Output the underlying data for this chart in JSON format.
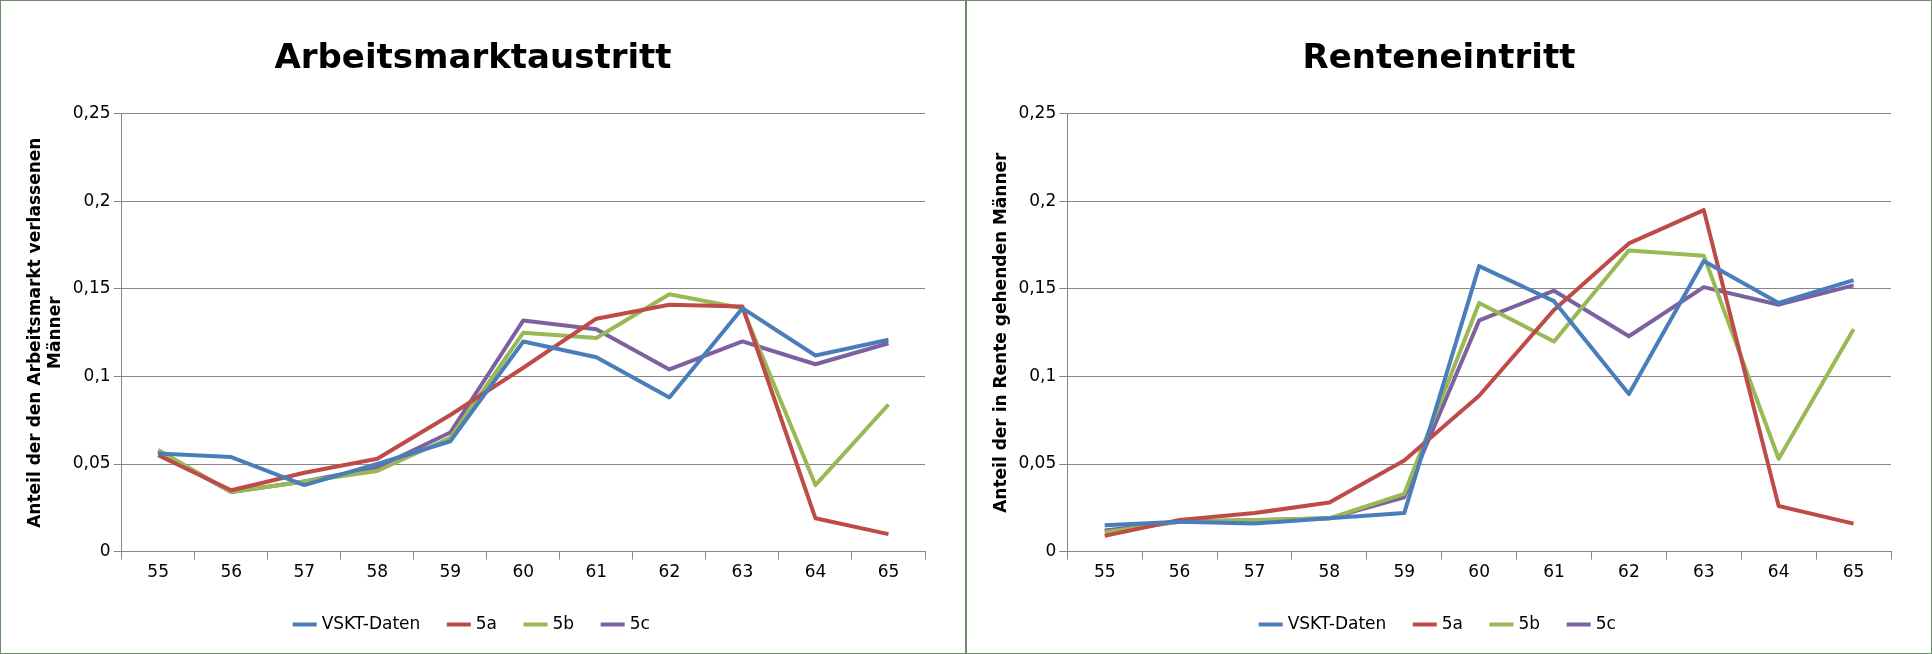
{
  "chart_data": [
    {
      "type": "line",
      "title": "Arbeitsmarktaustritt",
      "ylabel": "Anteil der den Arbeitsmarkt verlassenen Männer",
      "categories": [
        "55",
        "56",
        "57",
        "58",
        "59",
        "60",
        "61",
        "62",
        "63",
        "64",
        "65"
      ],
      "series": [
        {
          "name": "VSKT-Daten",
          "color": "#4a7ebb",
          "values": [
            0.056,
            0.054,
            0.038,
            0.05,
            0.063,
            0.12,
            0.111,
            0.088,
            0.139,
            0.112,
            0.121
          ]
        },
        {
          "name": "5a",
          "color": "#be4b48",
          "values": [
            0.055,
            0.035,
            0.045,
            0.053,
            0.078,
            0.105,
            0.133,
            0.141,
            0.14,
            0.019,
            0.01
          ]
        },
        {
          "name": "5b",
          "color": "#98b954",
          "values": [
            0.058,
            0.034,
            0.04,
            0.046,
            0.065,
            0.125,
            0.122,
            0.147,
            0.139,
            0.038,
            0.084
          ]
        },
        {
          "name": "5c",
          "color": "#7d60a0",
          "values": [
            0.057,
            0.034,
            0.04,
            0.048,
            0.068,
            0.132,
            0.127,
            0.104,
            0.12,
            0.107,
            0.119
          ]
        }
      ],
      "ylim": [
        0,
        0.25
      ],
      "yticks": [
        0,
        {
          "value": 0.05,
          "label": "0,05"
        },
        {
          "value": 0.1,
          "label": "0,1"
        },
        {
          "value": 0.15,
          "label": "0,15"
        },
        {
          "value": 0.2,
          "label": "0,2"
        },
        {
          "value": 0.25,
          "label": "0,25"
        }
      ],
      "grid": "y",
      "legend": "bottom",
      "marker": "none",
      "line_style": "solid"
    },
    {
      "type": "line",
      "title": "Renteneintritt",
      "ylabel": "Anteil der in Rente gehenden Männer",
      "categories": [
        "55",
        "56",
        "57",
        "58",
        "59",
        "60",
        "61",
        "62",
        "63",
        "64",
        "65"
      ],
      "series": [
        {
          "name": "VSKT-Daten",
          "color": "#4a7ebb",
          "values": [
            0.015,
            0.017,
            0.016,
            0.019,
            0.022,
            0.163,
            0.143,
            0.09,
            0.166,
            0.142,
            0.155
          ]
        },
        {
          "name": "5a",
          "color": "#be4b48",
          "values": [
            0.009,
            0.018,
            0.022,
            0.028,
            0.052,
            0.089,
            0.138,
            0.176,
            0.195,
            0.026,
            0.016
          ]
        },
        {
          "name": "5b",
          "color": "#98b954",
          "values": [
            0.011,
            0.017,
            0.018,
            0.019,
            0.033,
            0.142,
            0.12,
            0.172,
            0.169,
            0.053,
            0.127
          ]
        },
        {
          "name": "5c",
          "color": "#7d60a0",
          "values": [
            0.012,
            0.017,
            0.018,
            0.019,
            0.031,
            0.132,
            0.149,
            0.123,
            0.151,
            0.141,
            0.152
          ]
        }
      ],
      "ylim": [
        0,
        0.25
      ],
      "yticks": [
        0,
        {
          "value": 0.05,
          "label": "0,05"
        },
        {
          "value": 0.1,
          "label": "0,1"
        },
        {
          "value": 0.15,
          "label": "0,15"
        },
        {
          "value": 0.2,
          "label": "0,2"
        },
        {
          "value": 0.25,
          "label": "0,25"
        }
      ],
      "grid": "y",
      "legend": "bottom",
      "marker": "none",
      "line_style": "solid"
    }
  ]
}
